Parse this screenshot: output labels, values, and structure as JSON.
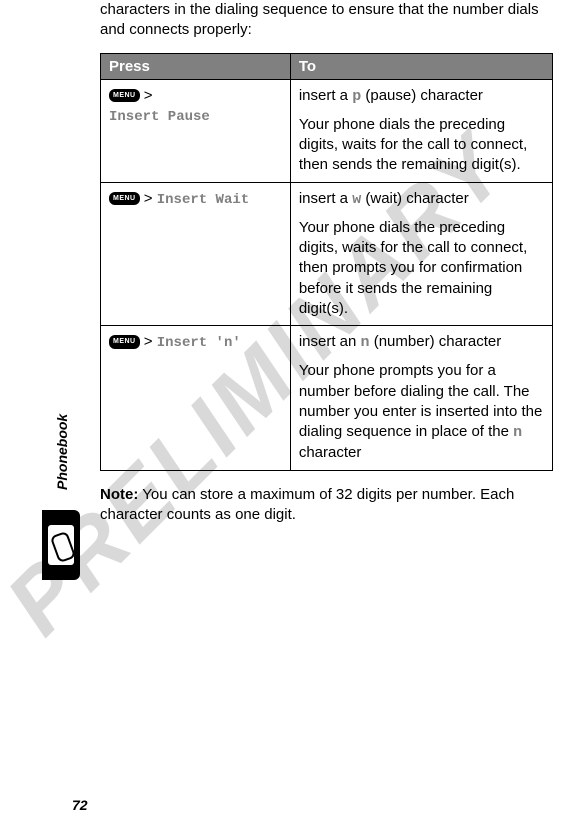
{
  "watermark": "PRELIMINARY",
  "intro": "characters in the dialing sequence to ensure that the number dials and connects properly:",
  "table": {
    "header": {
      "press": "Press",
      "to": "To"
    },
    "rows": [
      {
        "menu_label": "MENU",
        "sep": " > ",
        "menu_path": "Insert Pause",
        "to_line1_pre": "insert a ",
        "to_line1_char": "p",
        "to_line1_post": " (pause) character",
        "to_para2": "Your phone dials the preceding digits, waits for the call to connect, then sends the remaining digit(s)."
      },
      {
        "menu_label": "MENU",
        "sep": " > ",
        "menu_path": "Insert Wait",
        "to_line1_pre": "insert a ",
        "to_line1_char": "w",
        "to_line1_post": " (wait) character",
        "to_para2": "Your phone dials the preceding digits, waits for the call to connect, then prompts you for confirmation before it sends the remaining digit(s)."
      },
      {
        "menu_label": "MENU",
        "sep": " > ",
        "menu_path": "Insert 'n'",
        "to_line1_pre": "insert an ",
        "to_line1_char": "n",
        "to_line1_post": " (number) character",
        "to_para2_pre": "Your phone prompts you for a number before dialing the call. The number you enter is inserted into the dialing sequence in place of the ",
        "to_para2_char": "n",
        "to_para2_post": " character"
      }
    ]
  },
  "note_label": "Note:",
  "note_body": " You can store a maximum of 32 digits per number. Each character counts as one digit.",
  "sidebar_label": "Phonebook",
  "page_number": "72",
  "colors": {
    "header_bg": "#808080",
    "watermark": "#d9d9d9",
    "mono": "#808080"
  }
}
